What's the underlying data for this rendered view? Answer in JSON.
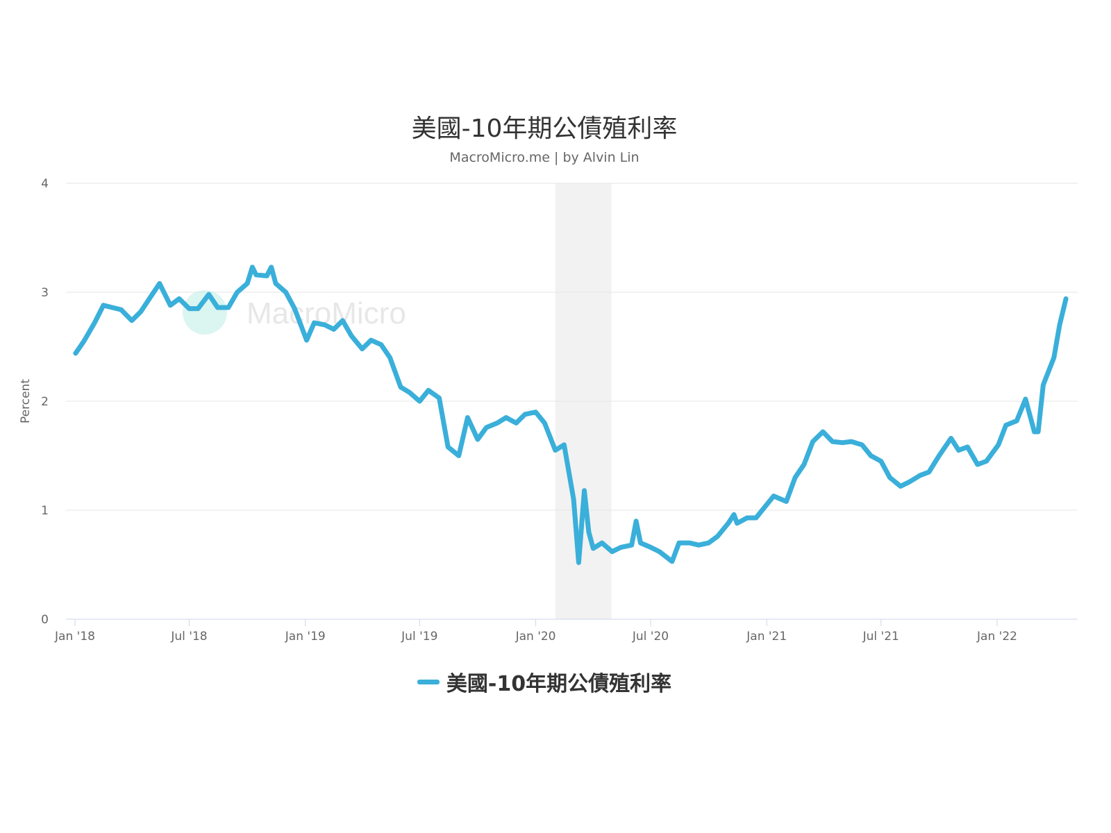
{
  "chart_data": {
    "type": "line",
    "title": "美國-10年期公債殖利率",
    "subtitle": "MacroMicro.me | by Alvin Lin",
    "watermark": "MacroMicro",
    "ylabel": "Percent",
    "xlabel": "",
    "ylim": [
      0,
      4
    ],
    "yticks": [
      "0",
      "1",
      "2",
      "3",
      "4"
    ],
    "xlim": [
      "2017-12-28",
      "2022-05-15"
    ],
    "xticks": [
      {
        "date": "2018-01-01",
        "label": "Jan '18"
      },
      {
        "date": "2018-07-01",
        "label": "Jul '18"
      },
      {
        "date": "2019-01-01",
        "label": "Jan '19"
      },
      {
        "date": "2019-07-01",
        "label": "Jul '19"
      },
      {
        "date": "2020-01-01",
        "label": "Jan '20"
      },
      {
        "date": "2020-07-01",
        "label": "Jul '20"
      },
      {
        "date": "2021-01-01",
        "label": "Jan '21"
      },
      {
        "date": "2021-07-01",
        "label": "Jul '21"
      },
      {
        "date": "2022-01-01",
        "label": "Jan '22"
      }
    ],
    "grid": true,
    "legend": "bottom-center",
    "shaded_period": {
      "start": "2020-02-01",
      "end": "2020-04-30",
      "color": "#f2f2f2"
    },
    "series": [
      {
        "name": "美國-10年期公債殖利率",
        "color": "#3aafda",
        "points": [
          [
            "2018-01-02",
            2.44
          ],
          [
            "2018-01-15",
            2.55
          ],
          [
            "2018-02-01",
            2.72
          ],
          [
            "2018-02-15",
            2.88
          ],
          [
            "2018-03-01",
            2.86
          ],
          [
            "2018-03-15",
            2.84
          ],
          [
            "2018-04-01",
            2.74
          ],
          [
            "2018-04-15",
            2.82
          ],
          [
            "2018-05-01",
            2.96
          ],
          [
            "2018-05-15",
            3.08
          ],
          [
            "2018-06-01",
            2.88
          ],
          [
            "2018-06-15",
            2.94
          ],
          [
            "2018-07-01",
            2.85
          ],
          [
            "2018-07-15",
            2.85
          ],
          [
            "2018-08-01",
            2.98
          ],
          [
            "2018-08-15",
            2.86
          ],
          [
            "2018-09-01",
            2.86
          ],
          [
            "2018-09-15",
            3.0
          ],
          [
            "2018-10-01",
            3.08
          ],
          [
            "2018-10-09",
            3.23
          ],
          [
            "2018-10-15",
            3.16
          ],
          [
            "2018-11-01",
            3.15
          ],
          [
            "2018-11-08",
            3.23
          ],
          [
            "2018-11-15",
            3.08
          ],
          [
            "2018-12-01",
            3.0
          ],
          [
            "2018-12-15",
            2.85
          ],
          [
            "2019-01-03",
            2.56
          ],
          [
            "2019-01-15",
            2.72
          ],
          [
            "2019-02-01",
            2.7
          ],
          [
            "2019-02-15",
            2.66
          ],
          [
            "2019-03-01",
            2.74
          ],
          [
            "2019-03-15",
            2.6
          ],
          [
            "2019-04-01",
            2.48
          ],
          [
            "2019-04-15",
            2.56
          ],
          [
            "2019-05-01",
            2.52
          ],
          [
            "2019-05-15",
            2.4
          ],
          [
            "2019-06-01",
            2.13
          ],
          [
            "2019-06-15",
            2.08
          ],
          [
            "2019-07-01",
            2.0
          ],
          [
            "2019-07-15",
            2.1
          ],
          [
            "2019-08-01",
            2.03
          ],
          [
            "2019-08-15",
            1.58
          ],
          [
            "2019-09-01",
            1.5
          ],
          [
            "2019-09-15",
            1.85
          ],
          [
            "2019-10-01",
            1.65
          ],
          [
            "2019-10-15",
            1.76
          ],
          [
            "2019-11-01",
            1.8
          ],
          [
            "2019-11-15",
            1.85
          ],
          [
            "2019-12-01",
            1.8
          ],
          [
            "2019-12-15",
            1.88
          ],
          [
            "2020-01-01",
            1.9
          ],
          [
            "2020-01-15",
            1.8
          ],
          [
            "2020-02-01",
            1.55
          ],
          [
            "2020-02-15",
            1.6
          ],
          [
            "2020-03-01",
            1.1
          ],
          [
            "2020-03-09",
            0.52
          ],
          [
            "2020-03-18",
            1.18
          ],
          [
            "2020-03-25",
            0.8
          ],
          [
            "2020-04-01",
            0.65
          ],
          [
            "2020-04-15",
            0.7
          ],
          [
            "2020-05-01",
            0.62
          ],
          [
            "2020-05-15",
            0.66
          ],
          [
            "2020-06-01",
            0.68
          ],
          [
            "2020-06-08",
            0.9
          ],
          [
            "2020-06-15",
            0.7
          ],
          [
            "2020-07-01",
            0.66
          ],
          [
            "2020-07-15",
            0.62
          ],
          [
            "2020-08-04",
            0.53
          ],
          [
            "2020-08-15",
            0.7
          ],
          [
            "2020-09-01",
            0.7
          ],
          [
            "2020-09-15",
            0.68
          ],
          [
            "2020-10-01",
            0.7
          ],
          [
            "2020-10-15",
            0.76
          ],
          [
            "2020-11-01",
            0.88
          ],
          [
            "2020-11-10",
            0.96
          ],
          [
            "2020-11-15",
            0.88
          ],
          [
            "2020-12-01",
            0.93
          ],
          [
            "2020-12-15",
            0.93
          ],
          [
            "2021-01-12",
            1.13
          ],
          [
            "2021-02-01",
            1.08
          ],
          [
            "2021-02-15",
            1.3
          ],
          [
            "2021-03-01",
            1.42
          ],
          [
            "2021-03-15",
            1.63
          ],
          [
            "2021-03-31",
            1.72
          ],
          [
            "2021-04-15",
            1.63
          ],
          [
            "2021-05-01",
            1.62
          ],
          [
            "2021-05-15",
            1.63
          ],
          [
            "2021-06-01",
            1.6
          ],
          [
            "2021-06-15",
            1.5
          ],
          [
            "2021-07-01",
            1.45
          ],
          [
            "2021-07-15",
            1.3
          ],
          [
            "2021-08-01",
            1.22
          ],
          [
            "2021-08-15",
            1.26
          ],
          [
            "2021-09-01",
            1.32
          ],
          [
            "2021-09-15",
            1.35
          ],
          [
            "2021-10-01",
            1.5
          ],
          [
            "2021-10-20",
            1.66
          ],
          [
            "2021-11-01",
            1.55
          ],
          [
            "2021-11-15",
            1.58
          ],
          [
            "2021-12-01",
            1.42
          ],
          [
            "2021-12-15",
            1.45
          ],
          [
            "2022-01-03",
            1.6
          ],
          [
            "2022-01-15",
            1.78
          ],
          [
            "2022-02-01",
            1.82
          ],
          [
            "2022-02-15",
            2.02
          ],
          [
            "2022-03-01",
            1.72
          ],
          [
            "2022-03-07",
            1.72
          ],
          [
            "2022-03-15",
            2.15
          ],
          [
            "2022-04-01",
            2.4
          ],
          [
            "2022-04-10",
            2.7
          ],
          [
            "2022-04-20",
            2.94
          ]
        ]
      }
    ]
  }
}
